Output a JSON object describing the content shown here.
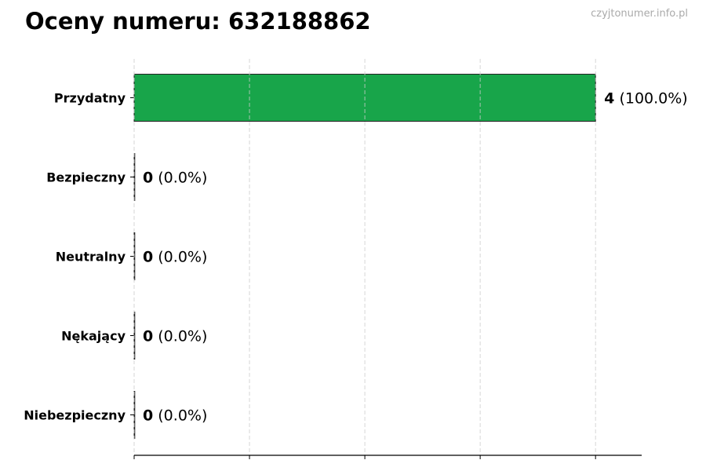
{
  "header": {
    "title": "Oceny numeru: 632188862",
    "watermark": "czyjtonumer.info.pl"
  },
  "chart_data": {
    "type": "bar",
    "orientation": "horizontal",
    "title": "Oceny numeru: 632188862",
    "categories": [
      "Przydatny",
      "Bezpieczny",
      "Neutralny",
      "Nękający",
      "Niebezpieczny"
    ],
    "values": [
      4,
      0,
      0,
      0,
      0
    ],
    "percents": [
      "100.0%",
      "0.0%",
      "0.0%",
      "0.0%",
      "0.0%"
    ],
    "data_labels": [
      {
        "count": "4",
        "pct": "(100.0%)"
      },
      {
        "count": "0",
        "pct": "(0.0%)"
      },
      {
        "count": "0",
        "pct": "(0.0%)"
      },
      {
        "count": "0",
        "pct": "(0.0%)"
      },
      {
        "count": "0",
        "pct": "(0.0%)"
      }
    ],
    "xlim": [
      0,
      4.4
    ],
    "xticks": [
      0,
      1,
      2,
      3,
      4
    ],
    "grid": "vertical dashed",
    "bar_color": "#18a54a",
    "xlabel": "",
    "ylabel": ""
  }
}
